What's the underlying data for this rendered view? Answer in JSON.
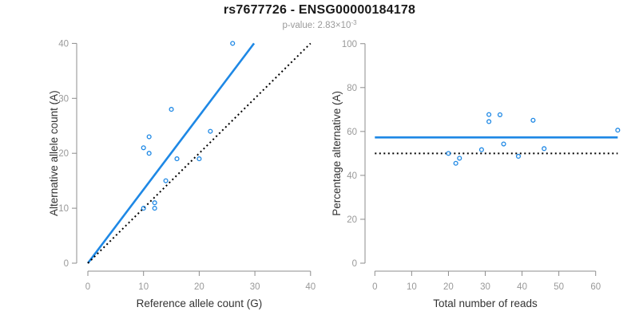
{
  "header": {
    "title": "rs7677726 - ENSG00000184178",
    "subtitle_prefix": "p-value: 2.83×10",
    "subtitle_exponent": "-3"
  },
  "colors": {
    "accent_blue": "#1E88E5",
    "axis_gray": "#8C8C8C",
    "tick_label_gray": "#999999",
    "axis_title_black": "#333333",
    "dotted_black": "#000000"
  },
  "chart_data": [
    {
      "type": "scatter",
      "name": "allele-counts-scatter",
      "xlabel": "Reference allele count (G)",
      "ylabel": "Alternative allele count (A)",
      "xlim": [
        0,
        40
      ],
      "ylim": [
        0,
        40
      ],
      "xticks": [
        0,
        10,
        20,
        30,
        40
      ],
      "yticks": [
        0,
        10,
        20,
        30,
        40
      ],
      "grid": false,
      "legend": "none",
      "marker": "open-circle",
      "points": [
        [
          26,
          40
        ],
        [
          15,
          28
        ],
        [
          22,
          24
        ],
        [
          11,
          23
        ],
        [
          10,
          21
        ],
        [
          11,
          20
        ],
        [
          16,
          19
        ],
        [
          20,
          19
        ],
        [
          14,
          15
        ],
        [
          12,
          11
        ],
        [
          10,
          10
        ],
        [
          12,
          10
        ]
      ],
      "lines": [
        {
          "name": "regression-line",
          "style": "solid",
          "color": "#1E88E5",
          "from": [
            0,
            0
          ],
          "to": [
            29.85,
            40
          ]
        },
        {
          "name": "identity-line",
          "style": "dotted",
          "color": "#000000",
          "from": [
            0,
            0
          ],
          "to": [
            40,
            40
          ]
        }
      ]
    },
    {
      "type": "scatter",
      "name": "percentage-vs-reads-scatter",
      "xlabel": "Total number of reads",
      "ylabel": "Percentage alternative (A)",
      "xlim": [
        0,
        66
      ],
      "ylim": [
        0,
        100
      ],
      "xticks": [
        0,
        10,
        20,
        30,
        40,
        50,
        60
      ],
      "yticks": [
        0,
        20,
        40,
        60,
        80,
        100
      ],
      "grid": false,
      "legend": "none",
      "marker": "open-circle",
      "points": [
        [
          20,
          50.0
        ],
        [
          22,
          45.5
        ],
        [
          23,
          47.8
        ],
        [
          29,
          51.7
        ],
        [
          31,
          67.7
        ],
        [
          31,
          64.5
        ],
        [
          34,
          67.6
        ],
        [
          35,
          54.3
        ],
        [
          39,
          48.7
        ],
        [
          43,
          65.1
        ],
        [
          46,
          52.2
        ],
        [
          66,
          60.6
        ]
      ],
      "lines": [
        {
          "name": "mean-percentage-line",
          "style": "solid",
          "color": "#1E88E5",
          "y": 57.3
        },
        {
          "name": "expected-50-line",
          "style": "dotted",
          "color": "#000000",
          "y": 50
        }
      ]
    }
  ]
}
